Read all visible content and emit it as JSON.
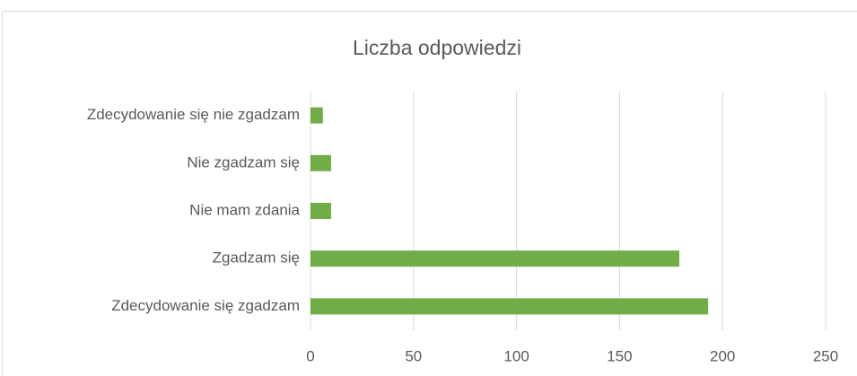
{
  "chart_data": {
    "type": "bar",
    "orientation": "horizontal",
    "title": "Liczba odpowiedzi",
    "categories": [
      "Zdecydowanie się nie zgadzam",
      "Nie zgadzam się",
      "Nie mam zdania",
      "Zgadzam się",
      "Zdecydowanie się zgadzam"
    ],
    "values": [
      6,
      10,
      10,
      179,
      193
    ],
    "color": "#70ad47",
    "xlim": [
      0,
      250
    ],
    "xticks": [
      0,
      50,
      100,
      150,
      200,
      250
    ],
    "grid": true
  }
}
